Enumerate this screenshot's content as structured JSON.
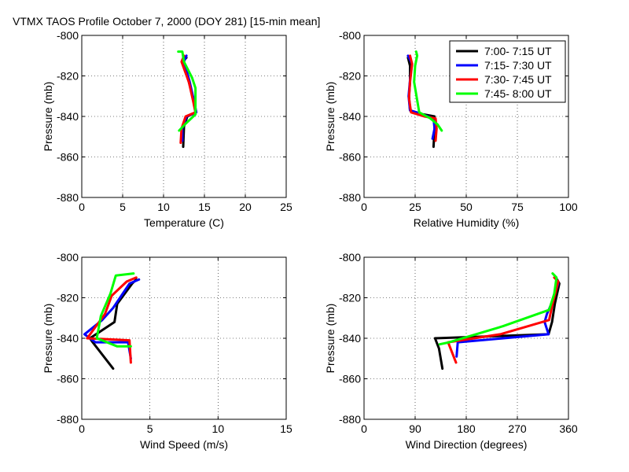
{
  "title": "VTMX TAOS Profile   October 7, 2000 (DOY 281) [15-min mean]",
  "colors": {
    "s1": "#000000",
    "s2": "#0000ff",
    "s3": "#ff0000",
    "s4": "#00ff00"
  },
  "chart_data": [
    {
      "type": "line",
      "id": "temperature",
      "xlabel": "Temperature (C)",
      "ylabel": "Pressure (mb)",
      "xlim": [
        0,
        25
      ],
      "ylim": [
        -880,
        -800
      ],
      "xticks": [
        0,
        5,
        10,
        15,
        20,
        25
      ],
      "yticks": [
        -880,
        -860,
        -840,
        -820,
        -800
      ],
      "grid": true,
      "series": [
        {
          "name": "7:00- 7:15 UT",
          "color": "#000000",
          "points": [
            [
              12.8,
              -811
            ],
            [
              12.3,
              -813
            ],
            [
              13.1,
              -823
            ],
            [
              13.7,
              -832
            ],
            [
              14.0,
              -838
            ],
            [
              12.9,
              -840
            ],
            [
              12.5,
              -845
            ],
            [
              12.4,
              -855
            ]
          ]
        },
        {
          "name": "7:15- 7:30 UT",
          "color": "#0000ff",
          "points": [
            [
              12.8,
              -810
            ],
            [
              12.5,
              -813
            ],
            [
              13.2,
              -823
            ],
            [
              13.7,
              -832
            ],
            [
              14.0,
              -838
            ],
            [
              12.8,
              -840
            ],
            [
              12.3,
              -846
            ],
            [
              12.3,
              -852
            ]
          ]
        },
        {
          "name": "7:30- 7:45 UT",
          "color": "#ff0000",
          "points": [
            [
              12.5,
              -810
            ],
            [
              12.2,
              -813
            ],
            [
              13.1,
              -823
            ],
            [
              13.6,
              -832
            ],
            [
              13.9,
              -838
            ],
            [
              12.7,
              -840
            ],
            [
              12.2,
              -846
            ],
            [
              12.1,
              -853
            ]
          ]
        },
        {
          "name": "7:45- 8:00 UT",
          "color": "#00ff00",
          "points": [
            [
              11.8,
              -808
            ],
            [
              12.3,
              -808
            ],
            [
              12.5,
              -813
            ],
            [
              13.5,
              -821
            ],
            [
              13.9,
              -826
            ],
            [
              13.9,
              -839
            ],
            [
              12.6,
              -844
            ],
            [
              11.9,
              -847
            ]
          ]
        }
      ]
    },
    {
      "type": "line",
      "id": "relative-humidity",
      "xlabel": "Relative Humidity (%)",
      "ylabel": "Pressure (mb)",
      "xlim": [
        0,
        100
      ],
      "ylim": [
        -880,
        -800
      ],
      "xticks": [
        0,
        25,
        50,
        75,
        100
      ],
      "yticks": [
        -880,
        -860,
        -840,
        -820,
        -800
      ],
      "grid": true,
      "legend": "top-right",
      "series": [
        {
          "name": "7:00- 7:15 UT",
          "color": "#000000",
          "points": [
            [
              21.5,
              -811
            ],
            [
              22.5,
              -815
            ],
            [
              22.5,
              -823
            ],
            [
              22.0,
              -830
            ],
            [
              22.5,
              -837
            ],
            [
              29.0,
              -839
            ],
            [
              34.5,
              -840
            ],
            [
              34.5,
              -846
            ],
            [
              34.0,
              -855
            ]
          ]
        },
        {
          "name": "7:15- 7:30 UT",
          "color": "#0000ff",
          "points": [
            [
              21.5,
              -810
            ],
            [
              23.5,
              -814
            ],
            [
              22.5,
              -822
            ],
            [
              21.8,
              -830
            ],
            [
              22.5,
              -837
            ],
            [
              28.5,
              -839
            ],
            [
              34.0,
              -841
            ],
            [
              34.5,
              -846
            ],
            [
              33.5,
              -851
            ]
          ]
        },
        {
          "name": "7:30- 7:45 UT",
          "color": "#ff0000",
          "points": [
            [
              22.5,
              -810
            ],
            [
              23.5,
              -814
            ],
            [
              22.5,
              -823
            ],
            [
              22.0,
              -831
            ],
            [
              23.0,
              -838
            ],
            [
              29.5,
              -840
            ],
            [
              35.0,
              -841
            ],
            [
              35.5,
              -846
            ],
            [
              35.0,
              -852
            ]
          ]
        },
        {
          "name": "7:45- 8:00 UT",
          "color": "#00ff00",
          "points": [
            [
              25.5,
              -808
            ],
            [
              26.0,
              -810
            ],
            [
              25.0,
              -815
            ],
            [
              24.5,
              -823
            ],
            [
              26.0,
              -832
            ],
            [
              27.0,
              -838
            ],
            [
              32.5,
              -841
            ],
            [
              36.0,
              -844
            ],
            [
              38.0,
              -847
            ]
          ]
        }
      ]
    },
    {
      "type": "line",
      "id": "wind-speed",
      "xlabel": "Wind Speed (m/s)",
      "ylabel": "Pressure (mb)",
      "xlim": [
        0,
        15
      ],
      "ylim": [
        -880,
        -800
      ],
      "xticks": [
        0,
        5,
        10,
        15
      ],
      "yticks": [
        -880,
        -860,
        -840,
        -820,
        -800
      ],
      "grid": true,
      "series": [
        {
          "name": "7:00- 7:15 UT",
          "color": "#000000",
          "points": [
            [
              4.0,
              -811
            ],
            [
              3.7,
              -813
            ],
            [
              2.6,
              -823
            ],
            [
              2.4,
              -832
            ],
            [
              0.6,
              -840
            ],
            [
              0.8,
              -842
            ],
            [
              2.3,
              -855
            ]
          ]
        },
        {
          "name": "7:15- 7:30 UT",
          "color": "#0000ff",
          "points": [
            [
              4.2,
              -811
            ],
            [
              3.5,
              -813
            ],
            [
              2.3,
              -825
            ],
            [
              1.5,
              -831
            ],
            [
              0.2,
              -838
            ],
            [
              1.0,
              -842
            ],
            [
              3.4,
              -842
            ],
            [
              3.6,
              -850
            ]
          ]
        },
        {
          "name": "7:30- 7:45 UT",
          "color": "#ff0000",
          "points": [
            [
              4.0,
              -810
            ],
            [
              3.3,
              -812
            ],
            [
              2.2,
              -819
            ],
            [
              1.7,
              -828
            ],
            [
              0.4,
              -840
            ],
            [
              3.5,
              -841
            ],
            [
              3.6,
              -852
            ]
          ]
        },
        {
          "name": "7:45- 8:00 UT",
          "color": "#00ff00",
          "points": [
            [
              3.8,
              -808
            ],
            [
              2.5,
              -809
            ],
            [
              2.1,
              -818
            ],
            [
              1.4,
              -829
            ],
            [
              1.1,
              -840
            ],
            [
              2.6,
              -844
            ],
            [
              3.6,
              -844
            ]
          ]
        }
      ]
    },
    {
      "type": "line",
      "id": "wind-direction",
      "xlabel": "Wind Direction (degrees)",
      "ylabel": "Pressure (mb)",
      "xlim": [
        0,
        360
      ],
      "xticks": [
        0,
        90,
        180,
        270,
        360
      ],
      "ylim": [
        -880,
        -800
      ],
      "yticks": [
        -880,
        -860,
        -840,
        -820,
        -800
      ],
      "grid": true,
      "series": [
        {
          "name": "7:00- 7:15 UT",
          "color": "#000000",
          "points": [
            [
              340,
              -811
            ],
            [
              344,
              -813
            ],
            [
              336,
              -823
            ],
            [
              331,
              -832
            ],
            [
              325,
              -838
            ],
            [
              125,
              -840
            ],
            [
              132,
              -845
            ],
            [
              138,
              -855
            ]
          ]
        },
        {
          "name": "7:15- 7:30 UT",
          "color": "#0000ff",
          "points": [
            [
              338,
              -810
            ],
            [
              342,
              -813
            ],
            [
              330,
              -823
            ],
            [
              322,
              -828
            ],
            [
              318,
              -832
            ],
            [
              325,
              -838
            ],
            [
              165,
              -842
            ],
            [
              163,
              -849
            ]
          ]
        },
        {
          "name": "7:30- 7:45 UT",
          "color": "#ff0000",
          "points": [
            [
              335,
              -810
            ],
            [
              342,
              -812
            ],
            [
              332,
              -823
            ],
            [
              326,
              -831
            ],
            [
              240,
              -838
            ],
            [
              148,
              -842
            ],
            [
              162,
              -852
            ]
          ]
        },
        {
          "name": "7:45- 8:00 UT",
          "color": "#00ff00",
          "points": [
            [
              332,
              -808
            ],
            [
              339,
              -810
            ],
            [
              335,
              -818
            ],
            [
              326,
              -826
            ],
            [
              245,
              -834
            ],
            [
              150,
              -842
            ],
            [
              133,
              -843
            ]
          ]
        }
      ]
    }
  ]
}
